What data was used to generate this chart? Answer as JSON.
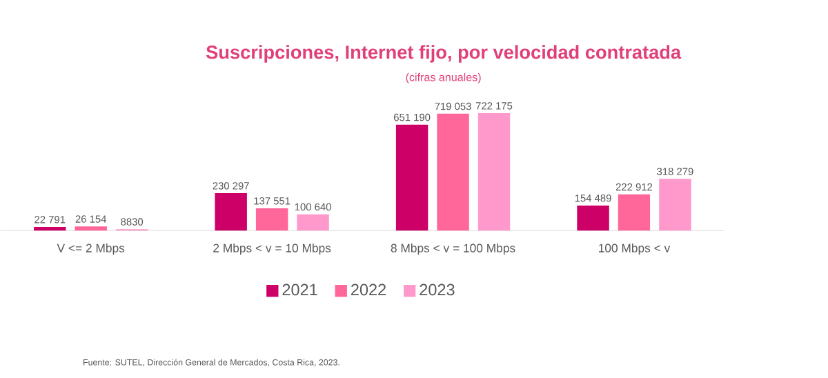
{
  "chart_data": {
    "type": "bar",
    "title": "Suscripciones, Internet fijo, por velocidad contratada",
    "subtitle": "(cifras anuales)",
    "categories": [
      "V <= 2 Mbps",
      "2 Mbps < v = 10 Mbps",
      "8 Mbps < v = 100 Mbps",
      "100 Mbps < v"
    ],
    "series": [
      {
        "name": "2021",
        "color": "#cc0066",
        "values": [
          22791,
          230297,
          651190,
          154489
        ],
        "value_labels": [
          "22 791",
          "230 297",
          "651 190",
          "154 489"
        ]
      },
      {
        "name": "2022",
        "color": "#ff6699",
        "values": [
          26154,
          137551,
          719053,
          222912
        ],
        "value_labels": [
          "26 154",
          "137 551",
          "719 053",
          "222 912"
        ]
      },
      {
        "name": "2023",
        "color": "#ff99cc",
        "values": [
          8830,
          100640,
          722175,
          318279
        ],
        "value_labels": [
          "8830",
          "100 640",
          "722 175",
          "318 279"
        ]
      }
    ],
    "legend": "bottom",
    "tick_labels": "x",
    "annotations": [
      "Fuente: SUTEL, Dirección General de Mercados, Costa Rica, 2023."
    ]
  }
}
